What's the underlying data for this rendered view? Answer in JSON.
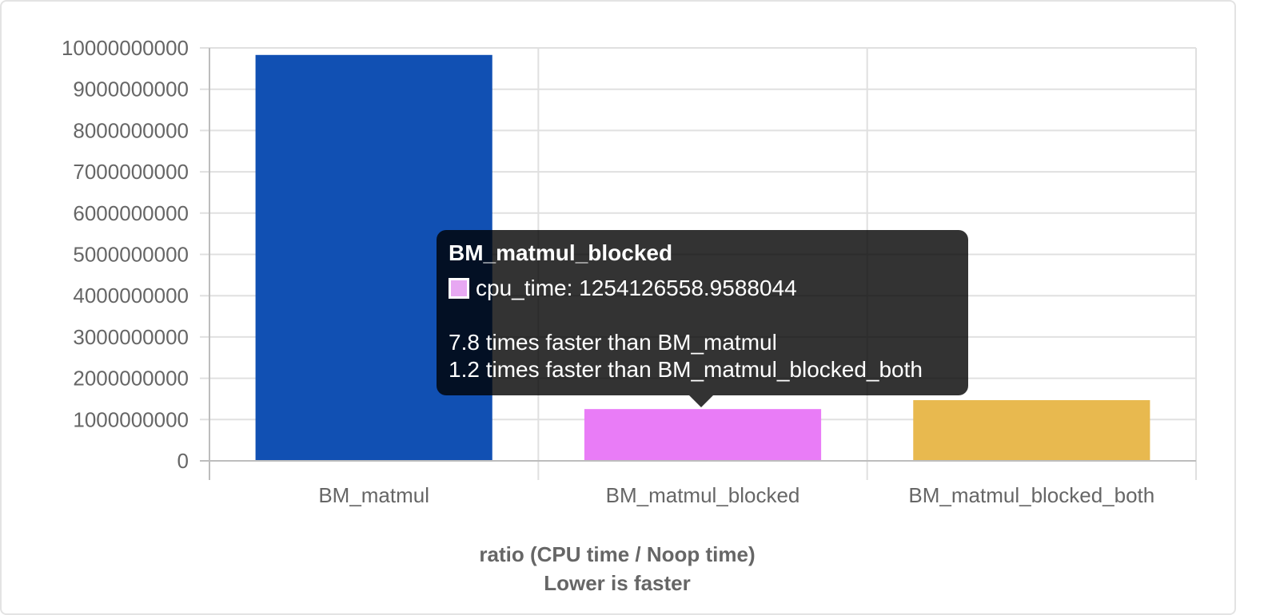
{
  "chart_data": {
    "type": "bar",
    "categories": [
      "BM_matmul",
      "BM_matmul_blocked",
      "BM_matmul_blocked_both"
    ],
    "series": [
      {
        "values": [
          9830000000,
          1254126558.9588044,
          1470000000
        ],
        "colors": [
          "#1150b3",
          "#e97cf7",
          "#e8b94f"
        ]
      }
    ],
    "yticks": [
      "0",
      "1000000000",
      "2000000000",
      "3000000000",
      "4000000000",
      "5000000000",
      "6000000000",
      "7000000000",
      "8000000000",
      "9000000000",
      "10000000000"
    ],
    "ylim": [
      0,
      10000000000
    ],
    "xlabel": [
      "ratio (CPU time / Noop time)",
      "Lower is faster"
    ],
    "ylabel": "",
    "grid": true,
    "colors": {
      "grid": "#e0e0e0",
      "axis": "#bdbdbd",
      "text": "#666666"
    }
  },
  "tooltip": {
    "title": "BM_matmul_blocked",
    "series_label": "cpu_time: 1254126558.9588044",
    "swatch_color": "#e7a8f2",
    "lines": [
      "7.8 times faster than BM_matmul",
      "1.2 times faster than BM_matmul_blocked_both"
    ]
  }
}
